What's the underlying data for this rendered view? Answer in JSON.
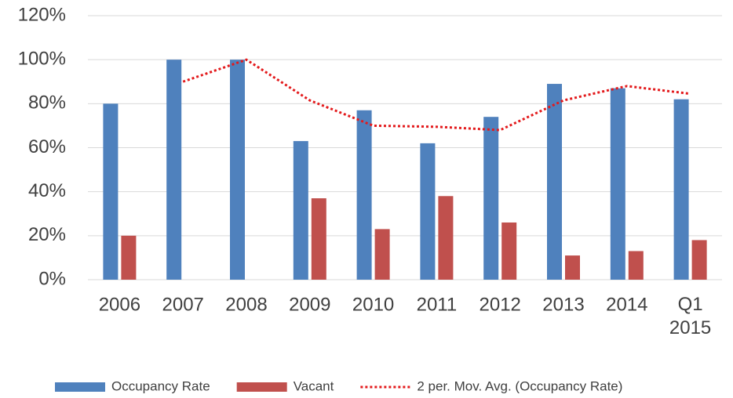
{
  "chart_data": {
    "type": "bar",
    "categories": [
      "2006",
      "2007",
      "2008",
      "2009",
      "2010",
      "2011",
      "2012",
      "2013",
      "2014",
      "Q1 2015"
    ],
    "series": [
      {
        "name": "Occupancy Rate",
        "color": "#4f81bd",
        "values": [
          80,
          100,
          100,
          63,
          77,
          62,
          74,
          89,
          87,
          82
        ]
      },
      {
        "name": "Vacant",
        "color": "#c0504d",
        "values": [
          20,
          0,
          0,
          37,
          23,
          38,
          26,
          11,
          13,
          18
        ]
      },
      {
        "name": "2 per. Mov. Avg. (Occupancy Rate)",
        "color": "#e31a1c",
        "type": "line",
        "values": [
          null,
          90,
          100,
          81.5,
          70,
          69.5,
          68,
          81.5,
          88,
          84.5
        ]
      }
    ],
    "ylim": [
      0,
      120
    ],
    "yticks": [
      {
        "value": 0,
        "label": "0%"
      },
      {
        "value": 20,
        "label": "20%"
      },
      {
        "value": 40,
        "label": "40%"
      },
      {
        "value": 60,
        "label": "60%"
      },
      {
        "value": 80,
        "label": "80%"
      },
      {
        "value": 100,
        "label": "100%"
      },
      {
        "value": 120,
        "label": "120%"
      }
    ],
    "grid": true,
    "legend": "bottom"
  }
}
